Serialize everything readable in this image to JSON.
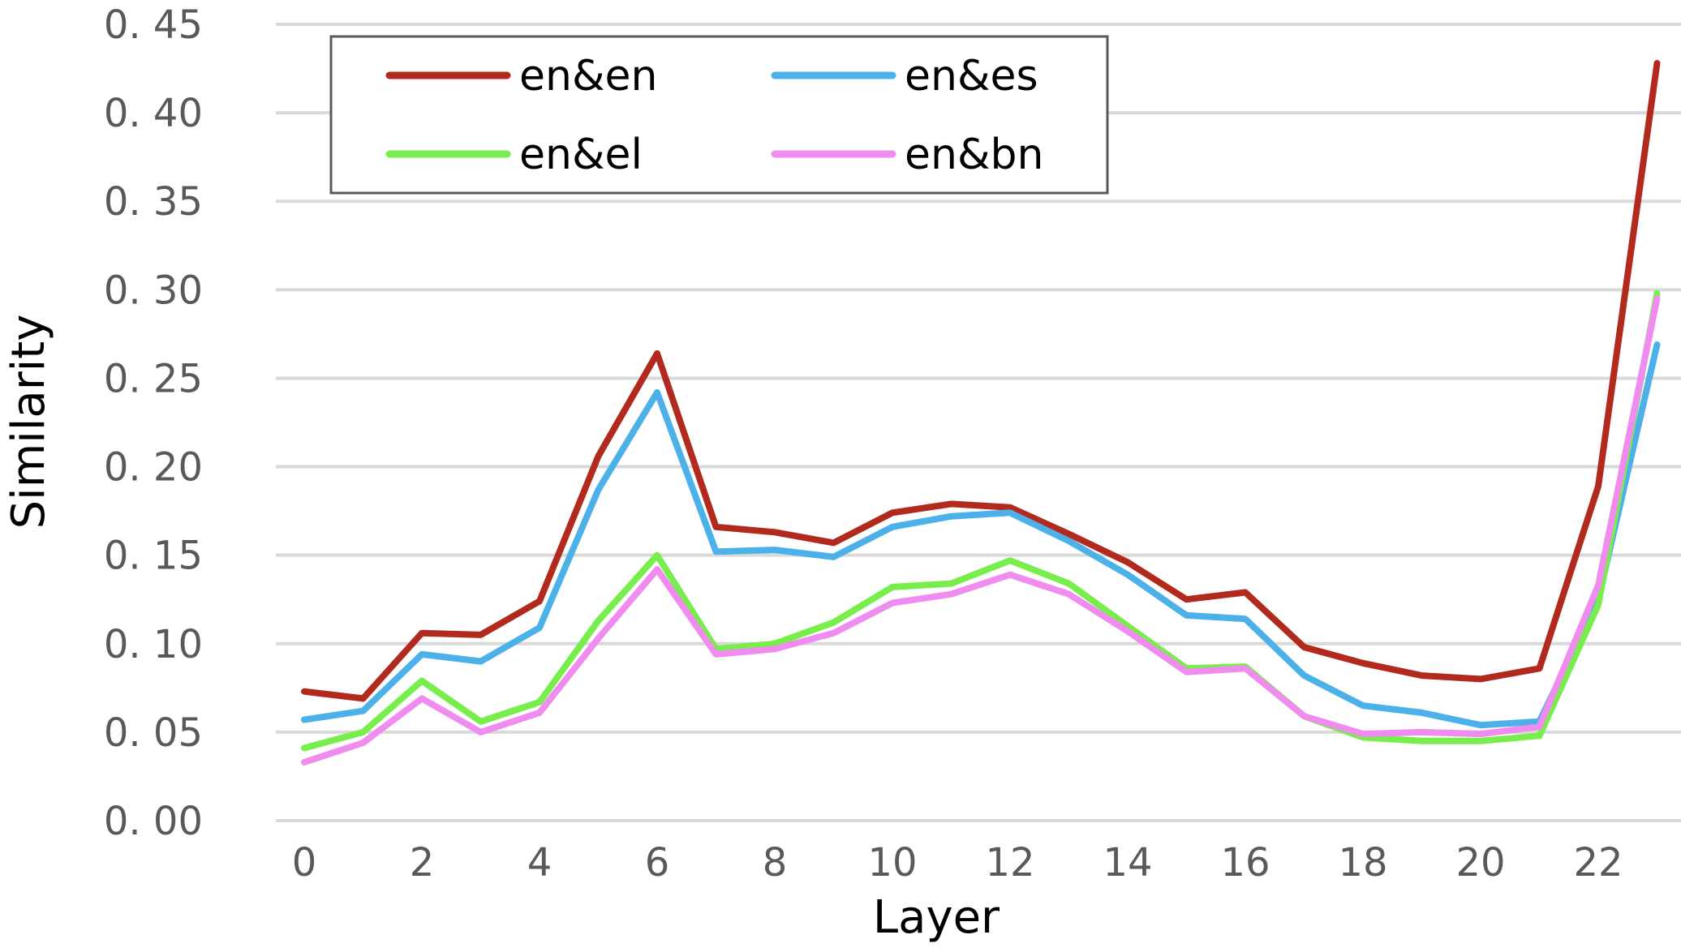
{
  "chart_data": {
    "type": "line",
    "xlabel": "Layer",
    "ylabel": "Similarity",
    "x": [
      0,
      1,
      2,
      3,
      4,
      5,
      6,
      7,
      8,
      9,
      10,
      11,
      12,
      13,
      14,
      15,
      16,
      17,
      18,
      19,
      20,
      21,
      22,
      23
    ],
    "xticks": [
      "0",
      "2",
      "4",
      "6",
      "8",
      "10",
      "12",
      "14",
      "16",
      "18",
      "20",
      "22"
    ],
    "yticks": [
      "0. 00",
      "0. 05",
      "0. 10",
      "0. 15",
      "0. 20",
      "0. 25",
      "0. 30",
      "0. 35",
      "0. 40",
      "0. 45"
    ],
    "xlim": [
      0,
      23
    ],
    "ylim": [
      0,
      0.45
    ],
    "grid": "horizontal",
    "legend": {
      "position": "top-left",
      "columns": 2
    },
    "series": [
      {
        "name": "en&en",
        "color": "#b22a1e",
        "values": [
          0.073,
          0.069,
          0.106,
          0.105,
          0.124,
          0.206,
          0.264,
          0.166,
          0.163,
          0.157,
          0.174,
          0.179,
          0.177,
          0.162,
          0.146,
          0.125,
          0.129,
          0.098,
          0.089,
          0.082,
          0.08,
          0.086,
          0.189,
          0.428
        ]
      },
      {
        "name": "en&es",
        "color": "#4cb1e9",
        "values": [
          0.057,
          0.062,
          0.094,
          0.09,
          0.109,
          0.187,
          0.242,
          0.152,
          0.153,
          0.149,
          0.166,
          0.172,
          0.174,
          0.158,
          0.139,
          0.116,
          0.114,
          0.082,
          0.065,
          0.061,
          0.054,
          0.056,
          0.125,
          0.269
        ]
      },
      {
        "name": "en&el",
        "color": "#77ee4c",
        "values": [
          0.041,
          0.05,
          0.079,
          0.056,
          0.067,
          0.113,
          0.15,
          0.097,
          0.1,
          0.112,
          0.132,
          0.134,
          0.147,
          0.134,
          0.11,
          0.086,
          0.087,
          0.059,
          0.047,
          0.045,
          0.045,
          0.048,
          0.122,
          0.298
        ]
      },
      {
        "name": "en&bn",
        "color": "#f08cf0",
        "values": [
          0.033,
          0.044,
          0.069,
          0.05,
          0.061,
          0.103,
          0.142,
          0.094,
          0.097,
          0.106,
          0.123,
          0.128,
          0.139,
          0.128,
          0.107,
          0.084,
          0.086,
          0.059,
          0.049,
          0.05,
          0.049,
          0.053,
          0.133,
          0.295
        ]
      }
    ]
  }
}
